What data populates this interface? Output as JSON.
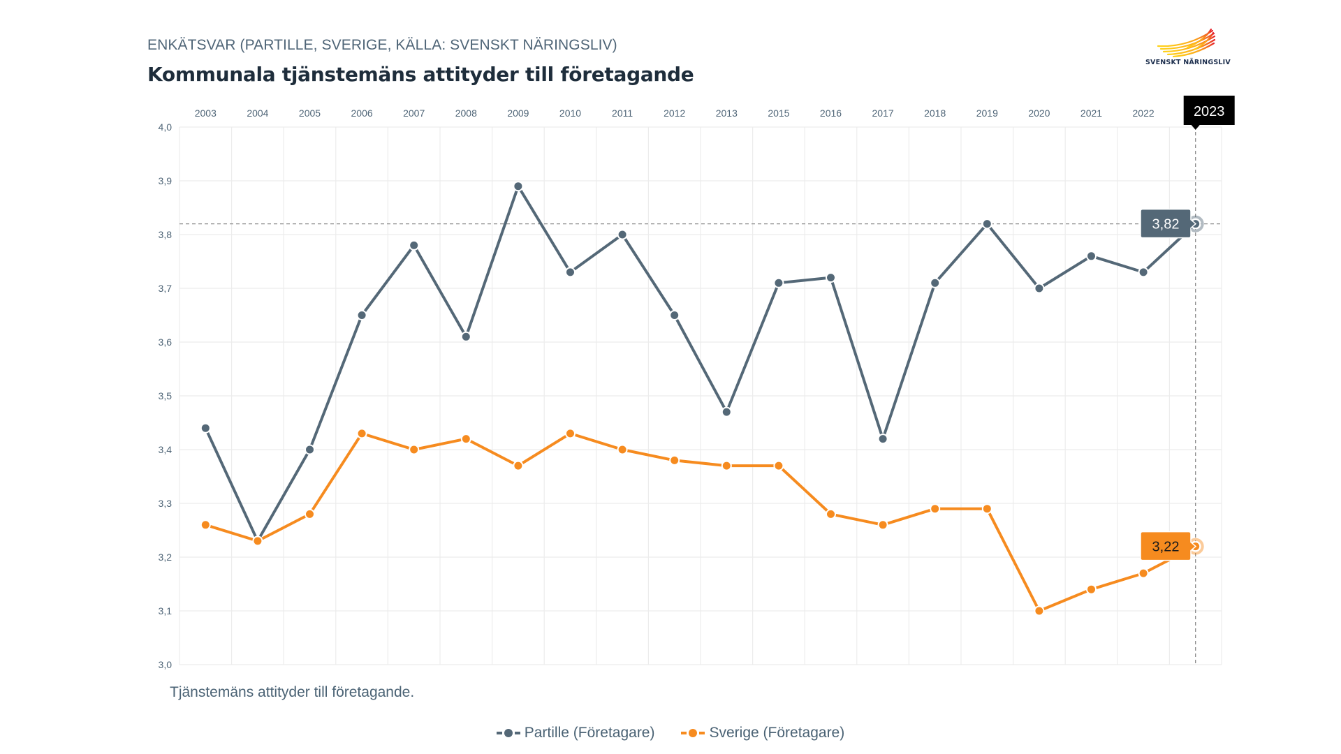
{
  "header": {
    "subtitle": "ENKÄTSVAR (PARTILLE, SVERIGE, KÄLLA: SVENSKT NÄRINGSLIV)",
    "title": "Kommunala tjänstemäns attityder till företagande"
  },
  "logo": {
    "text": "SVENSKT NÄRINGSLIV",
    "icon": "wing-logo-icon"
  },
  "caption": "Tjänstemäns attityder till företagande.",
  "legend": [
    {
      "label": "Partille (Företagare)",
      "color": "#546877"
    },
    {
      "label": "Sverige (Företagare)",
      "color": "#f68b1f"
    }
  ],
  "tooltip": {
    "year_label": "2023",
    "values": [
      {
        "label": "3,82",
        "series": "Partille (Företagare)"
      },
      {
        "label": "3,22",
        "series": "Sverige (Företagare)"
      }
    ]
  },
  "colors": {
    "partille": "#546877",
    "sverige": "#f68b1f",
    "grid": "#ececec",
    "axis_text": "#4f6577",
    "tooltip_year_bg": "#000000"
  },
  "chart_data": {
    "type": "line",
    "title": "Kommunala tjänstemäns attityder till företagande",
    "subtitle": "ENKÄTSVAR (PARTILLE, SVERIGE, KÄLLA: SVENSKT NÄRINGSLIV)",
    "xlabel": "",
    "ylabel": "",
    "x_axis_position": "top",
    "categories": [
      "2003",
      "2004",
      "2005",
      "2006",
      "2007",
      "2008",
      "2009",
      "2010",
      "2011",
      "2012",
      "2013",
      "2015",
      "2016",
      "2017",
      "2018",
      "2019",
      "2020",
      "2021",
      "2022",
      "2023"
    ],
    "series": [
      {
        "name": "Partille (Företagare)",
        "color": "#546877",
        "values": [
          3.44,
          3.23,
          3.4,
          3.65,
          3.78,
          3.61,
          3.89,
          3.73,
          3.8,
          3.65,
          3.47,
          3.71,
          3.72,
          3.42,
          3.71,
          3.82,
          3.7,
          3.76,
          3.73,
          3.82
        ]
      },
      {
        "name": "Sverige (Företagare)",
        "color": "#f68b1f",
        "values": [
          3.26,
          3.23,
          3.28,
          3.43,
          3.4,
          3.42,
          3.37,
          3.43,
          3.4,
          3.38,
          3.37,
          3.37,
          3.28,
          3.26,
          3.29,
          3.29,
          3.1,
          3.14,
          3.17,
          3.22
        ]
      }
    ],
    "yticks": [
      "4,0",
      "3,9",
      "3,8",
      "3,7",
      "3,6",
      "3,5",
      "3,4",
      "3,3",
      "3,2",
      "3,1",
      "3,0"
    ],
    "ylim": [
      3.0,
      4.0
    ],
    "grid": true,
    "legend_position": "bottom",
    "highlight": {
      "category": "2023",
      "crosshair_value": 3.82,
      "labels": [
        "3,82",
        "3,22"
      ]
    },
    "caption": "Tjänstemäns attityder till företagande."
  }
}
